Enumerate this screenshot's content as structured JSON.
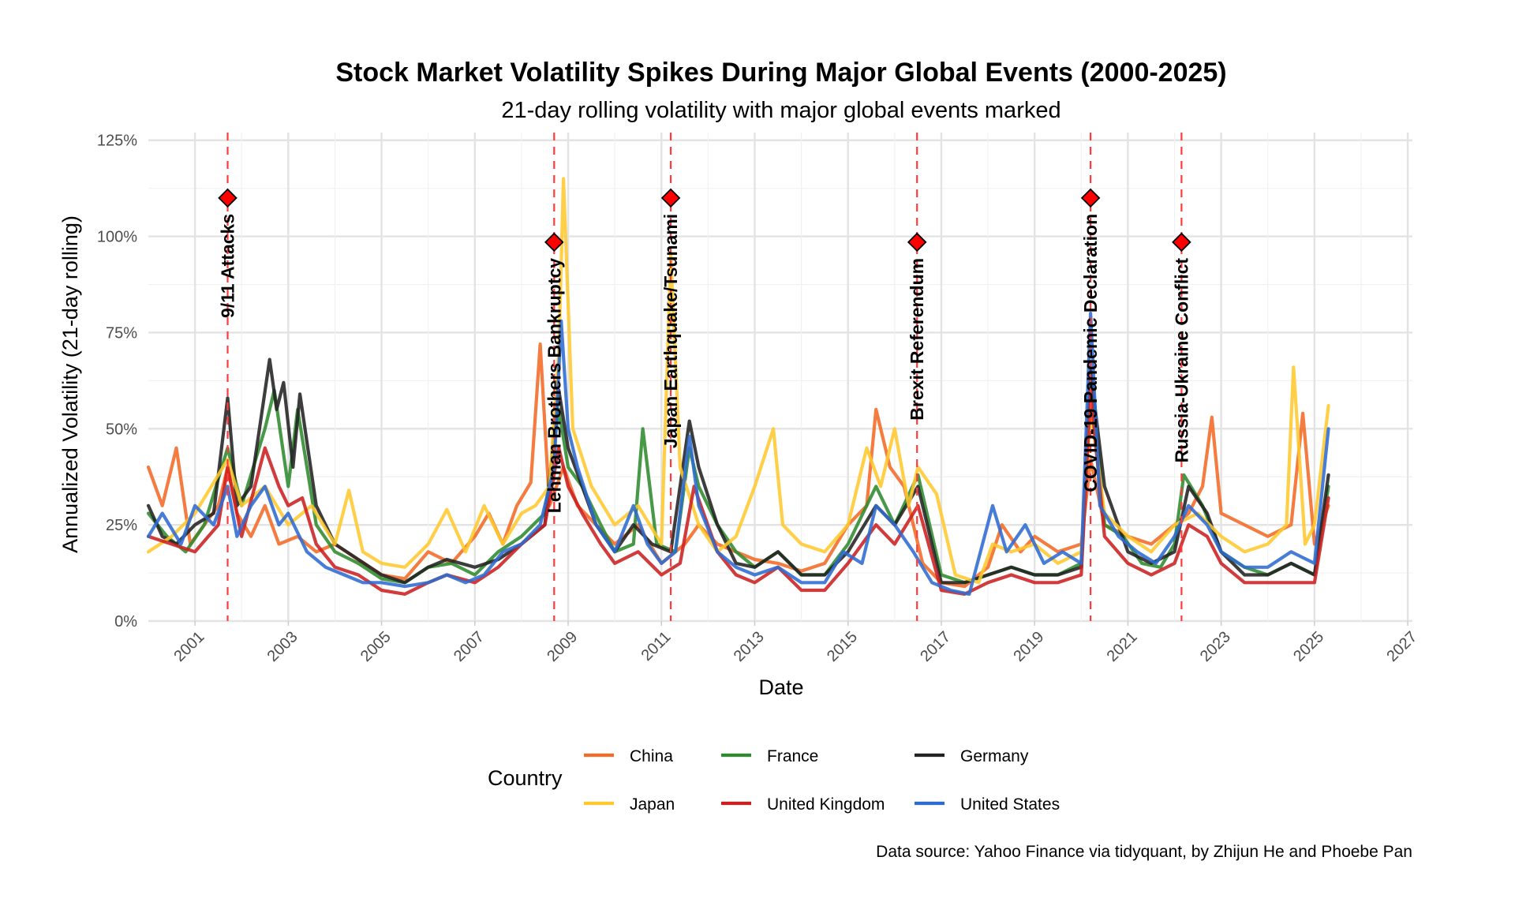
{
  "chart_data": {
    "type": "line",
    "title": "Stock Market Volatility Spikes During Major Global Events (2000-2025)",
    "subtitle": "21-day rolling volatility with major global events marked",
    "xlabel": "Date",
    "ylabel": "Annualized Volatility (21-day rolling)",
    "caption": "Data source: Yahoo Finance via tidyquant, by Zhijun He and Phoebe Pan",
    "x_range": [
      2000.0,
      2027.1
    ],
    "ylim": [
      0,
      1.27
    ],
    "x_ticks": [
      "2001",
      "2003",
      "2005",
      "2007",
      "2009",
      "2011",
      "2013",
      "2015",
      "2017",
      "2019",
      "2021",
      "2023",
      "2025",
      "2027"
    ],
    "y_ticks": [
      {
        "value": 0,
        "label": "0%"
      },
      {
        "value": 0.25,
        "label": "25%"
      },
      {
        "value": 0.5,
        "label": "50%"
      },
      {
        "value": 0.75,
        "label": "75%"
      },
      {
        "value": 1.0,
        "label": "100%"
      },
      {
        "value": 1.25,
        "label": "125%"
      }
    ],
    "grid": true,
    "legend": {
      "title": "Country",
      "position": "bottom"
    },
    "events": [
      {
        "label": "9/11 Attacks",
        "date": 2001.7,
        "marker_y": 1.1
      },
      {
        "label": "Lehman Brothers Bankruptcy",
        "date": 2008.7,
        "marker_y": 0.985
      },
      {
        "label": "Japan Earthquake/Tsunami",
        "date": 2011.2,
        "marker_y": 1.1
      },
      {
        "label": "Brexit Referendum",
        "date": 2016.48,
        "marker_y": 0.985
      },
      {
        "label": "COVID-19 Pandemic Declaration",
        "date": 2020.2,
        "marker_y": 1.1
      },
      {
        "label": "Russia-Ukraine Conflict",
        "date": 2022.15,
        "marker_y": 0.985
      }
    ],
    "series": [
      {
        "name": "China",
        "color": "#F46A26",
        "x": [
          2000.0,
          2000.3,
          2000.6,
          2000.9,
          2001.2,
          2001.5,
          2001.7,
          2001.9,
          2002.2,
          2002.5,
          2002.8,
          2003.2,
          2003.6,
          2004.0,
          2004.5,
          2005.0,
          2005.5,
          2006.0,
          2006.5,
          2007.0,
          2007.3,
          2007.6,
          2007.9,
          2008.2,
          2008.4,
          2008.6,
          2008.9,
          2009.2,
          2009.6,
          2010.0,
          2010.5,
          2011.0,
          2011.5,
          2011.8,
          2012.2,
          2012.6,
          2013.0,
          2013.5,
          2014.0,
          2014.5,
          2015.0,
          2015.4,
          2015.6,
          2015.9,
          2016.2,
          2016.6,
          2017.0,
          2017.5,
          2018.0,
          2018.3,
          2018.7,
          2019.0,
          2019.5,
          2020.0,
          2020.2,
          2020.5,
          2021.0,
          2021.5,
          2022.0,
          2022.3,
          2022.6,
          2022.8,
          2023.0,
          2023.5,
          2024.0,
          2024.5,
          2024.75,
          2025.0,
          2025.3
        ],
        "y": [
          0.4,
          0.3,
          0.45,
          0.2,
          0.25,
          0.3,
          0.4,
          0.28,
          0.22,
          0.3,
          0.2,
          0.22,
          0.18,
          0.2,
          0.16,
          0.12,
          0.11,
          0.18,
          0.15,
          0.22,
          0.28,
          0.2,
          0.3,
          0.36,
          0.72,
          0.3,
          0.4,
          0.3,
          0.25,
          0.2,
          0.25,
          0.15,
          0.2,
          0.25,
          0.2,
          0.18,
          0.16,
          0.15,
          0.13,
          0.15,
          0.25,
          0.3,
          0.55,
          0.4,
          0.35,
          0.15,
          0.1,
          0.09,
          0.14,
          0.25,
          0.18,
          0.22,
          0.18,
          0.2,
          0.42,
          0.25,
          0.22,
          0.2,
          0.25,
          0.28,
          0.35,
          0.53,
          0.28,
          0.25,
          0.22,
          0.25,
          0.54,
          0.2,
          0.3
        ]
      },
      {
        "name": "France",
        "color": "#2E8B2E",
        "x": [
          2000.0,
          2000.4,
          2000.8,
          2001.2,
          2001.7,
          2002.0,
          2002.5,
          2002.7,
          2003.0,
          2003.2,
          2003.6,
          2004.0,
          2004.5,
          2005.0,
          2005.5,
          2006.0,
          2006.5,
          2007.0,
          2007.5,
          2008.0,
          2008.5,
          2008.8,
          2009.0,
          2009.3,
          2009.7,
          2010.0,
          2010.4,
          2010.6,
          2010.9,
          2011.3,
          2011.6,
          2011.8,
          2012.2,
          2012.6,
          2013.0,
          2013.5,
          2014.0,
          2014.5,
          2015.0,
          2015.6,
          2016.0,
          2016.5,
          2017.0,
          2017.5,
          2018.0,
          2018.5,
          2019.0,
          2019.5,
          2020.0,
          2020.2,
          2020.5,
          2020.9,
          2021.3,
          2021.7,
          2022.0,
          2022.2,
          2022.6,
          2023.0,
          2023.5,
          2024.0,
          2024.5,
          2025.0,
          2025.3
        ],
        "y": [
          0.28,
          0.22,
          0.18,
          0.25,
          0.45,
          0.3,
          0.5,
          0.6,
          0.35,
          0.55,
          0.25,
          0.18,
          0.15,
          0.11,
          0.1,
          0.14,
          0.15,
          0.12,
          0.18,
          0.22,
          0.28,
          0.55,
          0.4,
          0.35,
          0.25,
          0.18,
          0.2,
          0.5,
          0.2,
          0.18,
          0.45,
          0.35,
          0.25,
          0.18,
          0.14,
          0.18,
          0.12,
          0.12,
          0.2,
          0.35,
          0.25,
          0.38,
          0.12,
          0.1,
          0.12,
          0.14,
          0.12,
          0.12,
          0.15,
          0.65,
          0.25,
          0.22,
          0.15,
          0.14,
          0.2,
          0.38,
          0.3,
          0.18,
          0.14,
          0.12,
          0.15,
          0.12,
          0.35
        ]
      },
      {
        "name": "Germany",
        "color": "#222222",
        "x": [
          2000.0,
          2000.3,
          2000.6,
          2001.0,
          2001.4,
          2001.7,
          2001.9,
          2002.2,
          2002.6,
          2002.75,
          2002.9,
          2003.1,
          2003.25,
          2003.6,
          2004.0,
          2004.5,
          2005.0,
          2005.5,
          2006.0,
          2006.4,
          2007.0,
          2007.5,
          2008.0,
          2008.5,
          2008.8,
          2009.0,
          2009.3,
          2009.6,
          2010.0,
          2010.4,
          2010.8,
          2011.2,
          2011.6,
          2011.8,
          2012.2,
          2012.6,
          2013.0,
          2013.5,
          2014.0,
          2014.5,
          2015.0,
          2015.6,
          2016.0,
          2016.5,
          2017.0,
          2017.5,
          2018.0,
          2018.5,
          2019.0,
          2019.5,
          2020.0,
          2020.2,
          2020.5,
          2021.0,
          2021.5,
          2022.0,
          2022.3,
          2022.7,
          2023.0,
          2023.5,
          2024.0,
          2024.5,
          2025.0,
          2025.3
        ],
        "y": [
          0.3,
          0.22,
          0.2,
          0.25,
          0.28,
          0.58,
          0.3,
          0.35,
          0.68,
          0.55,
          0.62,
          0.4,
          0.59,
          0.3,
          0.2,
          0.16,
          0.12,
          0.1,
          0.14,
          0.16,
          0.14,
          0.16,
          0.2,
          0.25,
          0.6,
          0.45,
          0.35,
          0.25,
          0.18,
          0.25,
          0.2,
          0.18,
          0.52,
          0.4,
          0.25,
          0.15,
          0.14,
          0.18,
          0.12,
          0.12,
          0.18,
          0.3,
          0.25,
          0.35,
          0.1,
          0.1,
          0.12,
          0.14,
          0.12,
          0.12,
          0.14,
          0.65,
          0.35,
          0.18,
          0.15,
          0.18,
          0.35,
          0.28,
          0.18,
          0.12,
          0.12,
          0.15,
          0.12,
          0.38
        ]
      },
      {
        "name": "Japan",
        "color": "#FFC82E",
        "x": [
          2000.0,
          2000.5,
          2001.0,
          2001.5,
          2001.7,
          2002.0,
          2002.5,
          2003.0,
          2003.5,
          2004.0,
          2004.3,
          2004.6,
          2005.0,
          2005.5,
          2006.0,
          2006.4,
          2006.8,
          2007.2,
          2007.6,
          2008.0,
          2008.3,
          2008.6,
          2008.8,
          2008.9,
          2009.1,
          2009.5,
          2010.0,
          2010.5,
          2011.0,
          2011.2,
          2011.4,
          2011.8,
          2012.2,
          2012.6,
          2013.0,
          2013.4,
          2013.6,
          2014.0,
          2014.5,
          2015.0,
          2015.4,
          2015.7,
          2016.0,
          2016.3,
          2016.5,
          2016.9,
          2017.3,
          2017.8,
          2018.1,
          2018.5,
          2019.0,
          2019.5,
          2020.0,
          2020.2,
          2020.5,
          2021.0,
          2021.5,
          2022.0,
          2022.5,
          2023.0,
          2023.5,
          2024.0,
          2024.4,
          2024.55,
          2024.8,
          2025.0,
          2025.3
        ],
        "y": [
          0.18,
          0.22,
          0.28,
          0.38,
          0.42,
          0.3,
          0.35,
          0.25,
          0.3,
          0.2,
          0.34,
          0.18,
          0.15,
          0.14,
          0.2,
          0.29,
          0.18,
          0.3,
          0.2,
          0.28,
          0.3,
          0.35,
          0.7,
          1.15,
          0.5,
          0.35,
          0.25,
          0.3,
          0.2,
          0.95,
          0.4,
          0.25,
          0.18,
          0.22,
          0.35,
          0.5,
          0.25,
          0.2,
          0.18,
          0.25,
          0.45,
          0.35,
          0.5,
          0.3,
          0.4,
          0.33,
          0.12,
          0.1,
          0.2,
          0.18,
          0.2,
          0.15,
          0.18,
          0.55,
          0.28,
          0.22,
          0.18,
          0.25,
          0.28,
          0.22,
          0.18,
          0.2,
          0.25,
          0.66,
          0.2,
          0.25,
          0.56
        ]
      },
      {
        "name": "United Kingdom",
        "color": "#CC2020",
        "x": [
          2000.0,
          2000.5,
          2001.0,
          2001.5,
          2001.7,
          2002.0,
          2002.5,
          2002.8,
          2003.0,
          2003.3,
          2003.6,
          2004.0,
          2004.5,
          2005.0,
          2005.5,
          2006.0,
          2006.4,
          2007.0,
          2007.5,
          2008.0,
          2008.5,
          2008.8,
          2009.0,
          2009.3,
          2009.7,
          2010.0,
          2010.5,
          2011.0,
          2011.4,
          2011.7,
          2012.2,
          2012.6,
          2013.0,
          2013.5,
          2014.0,
          2014.5,
          2015.0,
          2015.6,
          2016.0,
          2016.5,
          2017.0,
          2017.5,
          2018.0,
          2018.5,
          2019.0,
          2019.5,
          2020.0,
          2020.2,
          2020.5,
          2021.0,
          2021.5,
          2022.0,
          2022.3,
          2022.7,
          2023.0,
          2023.5,
          2024.0,
          2024.5,
          2025.0,
          2025.3
        ],
        "y": [
          0.22,
          0.2,
          0.18,
          0.25,
          0.4,
          0.22,
          0.45,
          0.35,
          0.3,
          0.32,
          0.2,
          0.14,
          0.12,
          0.08,
          0.07,
          0.1,
          0.12,
          0.1,
          0.14,
          0.2,
          0.25,
          0.45,
          0.35,
          0.28,
          0.2,
          0.15,
          0.18,
          0.12,
          0.15,
          0.35,
          0.18,
          0.12,
          0.1,
          0.14,
          0.08,
          0.08,
          0.15,
          0.25,
          0.2,
          0.3,
          0.08,
          0.07,
          0.1,
          0.12,
          0.1,
          0.1,
          0.12,
          0.6,
          0.22,
          0.15,
          0.12,
          0.15,
          0.25,
          0.22,
          0.15,
          0.1,
          0.1,
          0.1,
          0.1,
          0.32
        ]
      },
      {
        "name": "United States",
        "color": "#2E6BD1",
        "x": [
          2000.0,
          2000.3,
          2000.7,
          2001.0,
          2001.4,
          2001.7,
          2001.9,
          2002.2,
          2002.5,
          2002.8,
          2003.0,
          2003.4,
          2003.8,
          2004.2,
          2004.6,
          2005.0,
          2005.5,
          2006.0,
          2006.4,
          2006.8,
          2007.2,
          2007.6,
          2008.0,
          2008.4,
          2008.7,
          2008.85,
          2009.0,
          2009.2,
          2009.6,
          2010.0,
          2010.4,
          2010.7,
          2011.0,
          2011.3,
          2011.6,
          2011.8,
          2012.2,
          2012.6,
          2013.0,
          2013.5,
          2014.0,
          2014.5,
          2014.9,
          2015.3,
          2015.6,
          2016.0,
          2016.4,
          2016.8,
          2017.2,
          2017.6,
          2018.1,
          2018.4,
          2018.8,
          2019.2,
          2019.6,
          2020.0,
          2020.2,
          2020.4,
          2020.8,
          2021.2,
          2021.6,
          2022.0,
          2022.3,
          2022.7,
          2023.0,
          2023.5,
          2024.0,
          2024.5,
          2025.0,
          2025.3
        ],
        "y": [
          0.22,
          0.28,
          0.2,
          0.3,
          0.25,
          0.35,
          0.22,
          0.3,
          0.35,
          0.25,
          0.28,
          0.18,
          0.14,
          0.12,
          0.1,
          0.1,
          0.09,
          0.1,
          0.12,
          0.1,
          0.12,
          0.18,
          0.2,
          0.25,
          0.4,
          0.78,
          0.5,
          0.4,
          0.25,
          0.18,
          0.3,
          0.2,
          0.15,
          0.18,
          0.48,
          0.3,
          0.18,
          0.14,
          0.12,
          0.14,
          0.1,
          0.1,
          0.18,
          0.15,
          0.3,
          0.25,
          0.18,
          0.1,
          0.08,
          0.07,
          0.3,
          0.18,
          0.25,
          0.15,
          0.18,
          0.15,
          0.8,
          0.3,
          0.22,
          0.18,
          0.15,
          0.22,
          0.3,
          0.25,
          0.18,
          0.14,
          0.14,
          0.18,
          0.15,
          0.5
        ]
      }
    ]
  }
}
